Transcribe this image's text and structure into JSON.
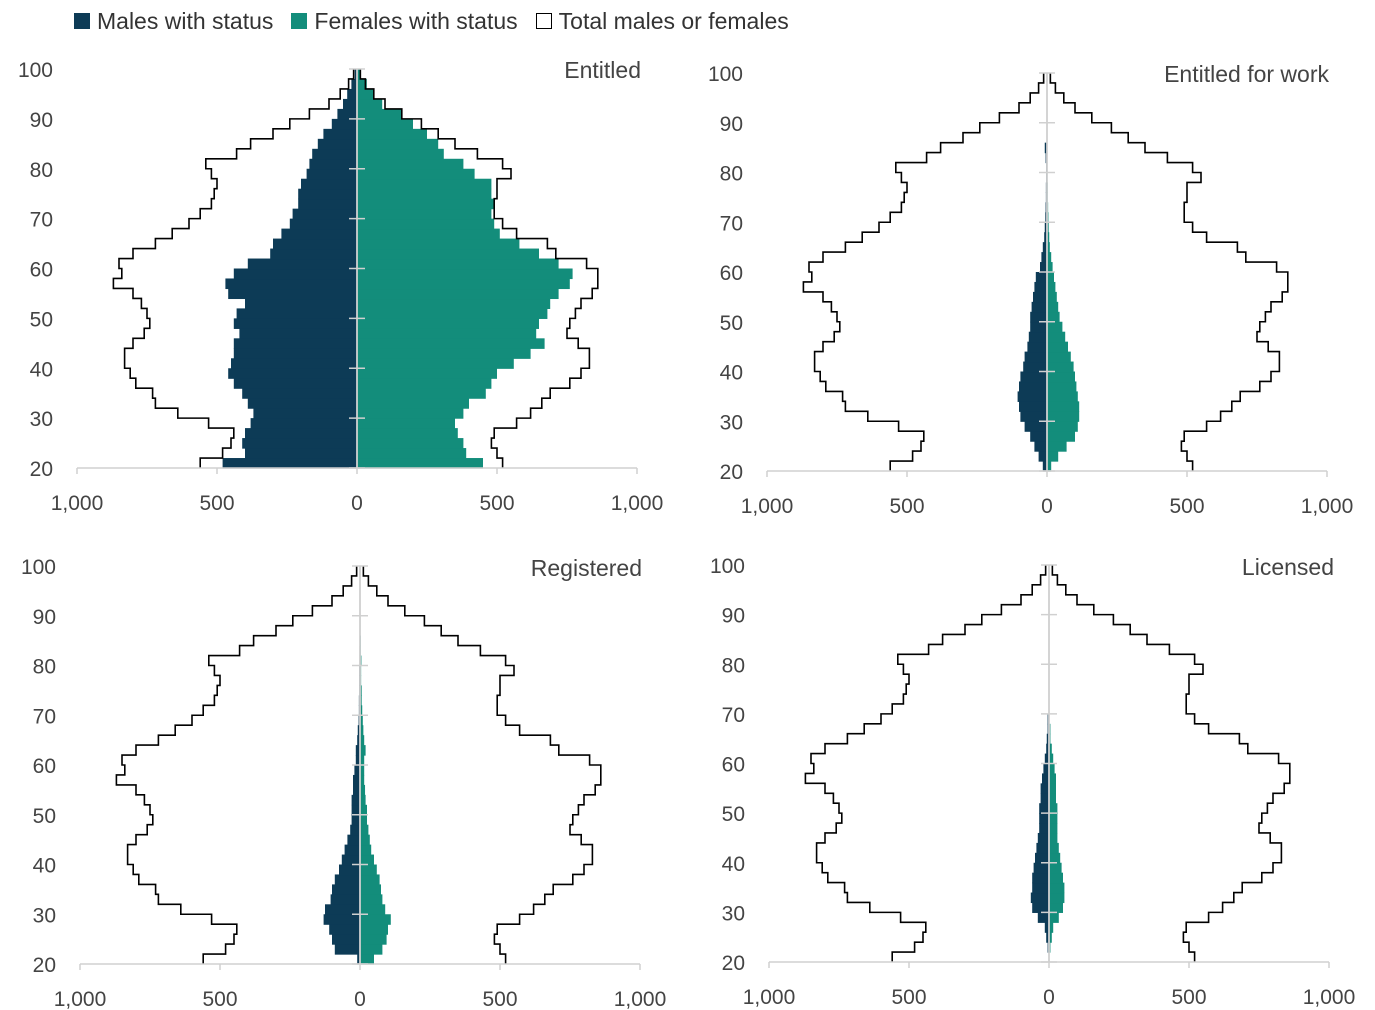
{
  "legend": {
    "males": "Males with status",
    "females": "Females with status",
    "total": "Total males or females"
  },
  "colors": {
    "males": "#0d3b56",
    "females": "#138d7b",
    "outline": "#000000",
    "axis": "#d0d0d0"
  },
  "chart_data": [
    {
      "type": "bar",
      "orientation": "population-pyramid",
      "title": "Entitled",
      "ages": [
        20,
        22,
        24,
        26,
        28,
        30,
        32,
        34,
        36,
        38,
        40,
        42,
        44,
        46,
        48,
        50,
        52,
        54,
        56,
        58,
        60,
        62,
        64,
        66,
        68,
        70,
        72,
        74,
        76,
        78,
        80,
        82,
        84,
        86,
        88,
        90,
        92,
        94,
        96,
        98
      ],
      "series": [
        {
          "name": "Males with status",
          "values": [
            480,
            400,
            410,
            400,
            380,
            370,
            390,
            410,
            440,
            460,
            450,
            440,
            440,
            420,
            440,
            430,
            400,
            460,
            470,
            440,
            390,
            310,
            300,
            270,
            240,
            230,
            210,
            210,
            200,
            180,
            170,
            160,
            140,
            120,
            90,
            70,
            50,
            35,
            20,
            8
          ]
        },
        {
          "name": "Females with status",
          "values": [
            450,
            390,
            380,
            360,
            350,
            380,
            400,
            460,
            480,
            500,
            560,
            620,
            670,
            640,
            650,
            680,
            690,
            720,
            760,
            770,
            720,
            650,
            580,
            510,
            490,
            480,
            490,
            480,
            480,
            420,
            380,
            310,
            290,
            250,
            200,
            160,
            90,
            60,
            35,
            12
          ]
        },
        {
          "name": "Total males or females",
          "values": [
            560,
            480,
            450,
            440,
            530,
            640,
            720,
            730,
            790,
            810,
            830,
            830,
            800,
            760,
            740,
            750,
            770,
            800,
            870,
            840,
            850,
            800,
            720,
            660,
            600,
            560,
            520,
            510,
            500,
            520,
            540,
            430,
            380,
            300,
            240,
            170,
            100,
            60,
            30,
            12
          ]
        },
        {
          "name": "Total males or females",
          "values": [
            520,
            500,
            480,
            490,
            570,
            620,
            660,
            690,
            760,
            800,
            830,
            830,
            790,
            750,
            760,
            780,
            800,
            840,
            860,
            860,
            820,
            710,
            680,
            570,
            520,
            490,
            490,
            500,
            500,
            550,
            520,
            430,
            350,
            290,
            230,
            160,
            100,
            60,
            30,
            12
          ]
        }
      ],
      "xlim": [
        -1000,
        1000
      ],
      "ylim": [
        20,
        100
      ],
      "x_ticks": [
        "1,000",
        "500",
        "0",
        "500",
        "1,000"
      ],
      "y_ticks": [
        "20",
        "30",
        "40",
        "50",
        "60",
        "70",
        "80",
        "90",
        "100"
      ]
    },
    {
      "type": "bar",
      "orientation": "population-pyramid",
      "title": "Entitled for work",
      "ages": [
        20,
        22,
        24,
        26,
        28,
        30,
        32,
        34,
        36,
        38,
        40,
        42,
        44,
        46,
        48,
        50,
        52,
        54,
        56,
        58,
        60,
        62,
        64,
        66,
        68,
        70,
        72,
        74,
        76,
        78,
        80,
        82,
        84,
        86,
        88,
        90,
        92,
        94,
        96,
        98
      ],
      "series": [
        {
          "name": "Males with status",
          "values": [
            15,
            30,
            45,
            60,
            80,
            95,
            100,
            105,
            100,
            95,
            85,
            80,
            70,
            65,
            60,
            60,
            55,
            50,
            45,
            40,
            25,
            20,
            15,
            10,
            8,
            6,
            5,
            4,
            4,
            3,
            3,
            5,
            8,
            0,
            0,
            0,
            0,
            0,
            0,
            0
          ]
        },
        {
          "name": "Females with status",
          "values": [
            15,
            40,
            70,
            100,
            110,
            115,
            115,
            110,
            105,
            100,
            95,
            85,
            75,
            65,
            55,
            45,
            40,
            35,
            30,
            25,
            20,
            15,
            10,
            8,
            6,
            5,
            4,
            3,
            3,
            2,
            2,
            0,
            0,
            0,
            0,
            0,
            0,
            0,
            0,
            0
          ]
        },
        {
          "name": "Total males or females",
          "values": [
            560,
            480,
            450,
            440,
            530,
            640,
            720,
            730,
            790,
            810,
            830,
            830,
            800,
            760,
            740,
            750,
            770,
            800,
            870,
            840,
            850,
            800,
            720,
            660,
            600,
            560,
            520,
            510,
            500,
            520,
            540,
            430,
            380,
            300,
            240,
            170,
            100,
            60,
            30,
            12
          ]
        },
        {
          "name": "Total males or females",
          "values": [
            520,
            500,
            480,
            490,
            570,
            620,
            660,
            690,
            760,
            800,
            830,
            830,
            790,
            750,
            760,
            780,
            800,
            840,
            860,
            860,
            820,
            710,
            680,
            570,
            520,
            490,
            490,
            500,
            500,
            550,
            520,
            430,
            350,
            290,
            230,
            160,
            100,
            60,
            30,
            12
          ]
        }
      ],
      "xlim": [
        -1000,
        1000
      ],
      "ylim": [
        20,
        100
      ],
      "x_ticks": [
        "1,000",
        "500",
        "0",
        "500",
        "1,000"
      ],
      "y_ticks": [
        "20",
        "30",
        "40",
        "50",
        "60",
        "70",
        "80",
        "90",
        "100"
      ]
    },
    {
      "type": "bar",
      "orientation": "population-pyramid",
      "title": "Registered",
      "ages": [
        20,
        22,
        24,
        26,
        28,
        30,
        32,
        34,
        36,
        38,
        40,
        42,
        44,
        46,
        48,
        50,
        52,
        54,
        56,
        58,
        60,
        62,
        64,
        66,
        68,
        70,
        72,
        74,
        76,
        78,
        80,
        82,
        84,
        86,
        88,
        90,
        92,
        94,
        96,
        98
      ],
      "series": [
        {
          "name": "Males with status",
          "values": [
            10,
            90,
            100,
            110,
            130,
            125,
            105,
            100,
            90,
            75,
            65,
            55,
            45,
            35,
            30,
            30,
            30,
            25,
            25,
            20,
            15,
            15,
            10,
            8,
            5,
            4,
            4,
            3,
            3,
            3,
            2,
            2,
            1,
            1,
            0,
            0,
            0,
            0,
            0,
            0
          ]
        },
        {
          "name": "Females with status",
          "values": [
            50,
            80,
            95,
            100,
            110,
            90,
            80,
            75,
            70,
            60,
            50,
            40,
            35,
            30,
            25,
            25,
            20,
            18,
            15,
            15,
            15,
            20,
            15,
            12,
            10,
            8,
            6,
            6,
            4,
            4,
            5,
            3,
            3,
            2,
            2,
            0,
            0,
            0,
            0,
            0
          ]
        },
        {
          "name": "Total males or females",
          "values": [
            560,
            480,
            450,
            440,
            530,
            640,
            720,
            730,
            790,
            810,
            830,
            830,
            800,
            760,
            740,
            750,
            770,
            800,
            870,
            840,
            850,
            800,
            720,
            660,
            600,
            560,
            520,
            510,
            500,
            520,
            540,
            430,
            380,
            300,
            240,
            170,
            100,
            60,
            30,
            12
          ]
        },
        {
          "name": "Total males or females",
          "values": [
            520,
            500,
            480,
            490,
            570,
            620,
            660,
            690,
            760,
            800,
            830,
            830,
            790,
            750,
            760,
            780,
            800,
            840,
            860,
            860,
            820,
            710,
            680,
            570,
            520,
            490,
            490,
            500,
            500,
            550,
            520,
            430,
            350,
            290,
            230,
            160,
            100,
            60,
            30,
            12
          ]
        }
      ],
      "xlim": [
        -1000,
        1000
      ],
      "ylim": [
        20,
        100
      ],
      "x_ticks": [
        "1,000",
        "500",
        "0",
        "500",
        "1,000"
      ],
      "y_ticks": [
        "20",
        "30",
        "40",
        "50",
        "60",
        "70",
        "80",
        "90",
        "100"
      ]
    },
    {
      "type": "bar",
      "orientation": "population-pyramid",
      "title": "Licensed",
      "ages": [
        20,
        22,
        24,
        26,
        28,
        30,
        32,
        34,
        36,
        38,
        40,
        42,
        44,
        46,
        48,
        50,
        52,
        54,
        56,
        58,
        60,
        62,
        64,
        66,
        68,
        70,
        72,
        74,
        76,
        78,
        80,
        82,
        84,
        86,
        88,
        90,
        92,
        94,
        96,
        98
      ],
      "series": [
        {
          "name": "Males with status",
          "values": [
            0,
            5,
            10,
            15,
            40,
            60,
            65,
            60,
            60,
            55,
            50,
            45,
            40,
            35,
            35,
            35,
            30,
            30,
            25,
            20,
            15,
            10,
            8,
            5,
            5,
            0,
            0,
            0,
            0,
            0,
            0,
            0,
            0,
            0,
            0,
            0,
            0,
            0,
            0,
            0
          ]
        },
        {
          "name": "Females with status",
          "values": [
            0,
            5,
            10,
            15,
            35,
            50,
            55,
            55,
            50,
            45,
            40,
            35,
            30,
            30,
            30,
            30,
            25,
            25,
            25,
            20,
            15,
            10,
            5,
            5,
            0,
            0,
            0,
            0,
            0,
            0,
            0,
            0,
            0,
            0,
            0,
            0,
            0,
            0,
            0,
            0
          ]
        },
        {
          "name": "Total males or females",
          "values": [
            560,
            480,
            450,
            440,
            530,
            640,
            720,
            730,
            790,
            810,
            830,
            830,
            800,
            760,
            740,
            750,
            770,
            800,
            870,
            840,
            850,
            800,
            720,
            660,
            600,
            560,
            520,
            510,
            500,
            520,
            540,
            430,
            380,
            300,
            240,
            170,
            100,
            60,
            30,
            12
          ]
        },
        {
          "name": "Total males or females",
          "values": [
            520,
            500,
            480,
            490,
            570,
            620,
            660,
            690,
            760,
            800,
            830,
            830,
            790,
            750,
            760,
            780,
            800,
            840,
            860,
            860,
            820,
            710,
            680,
            570,
            520,
            490,
            490,
            500,
            500,
            550,
            520,
            430,
            350,
            290,
            230,
            160,
            100,
            60,
            30,
            12
          ]
        }
      ],
      "xlim": [
        -1000,
        1000
      ],
      "ylim": [
        20,
        100
      ],
      "x_ticks": [
        "1,000",
        "500",
        "0",
        "500",
        "1,000"
      ],
      "y_ticks": [
        "20",
        "30",
        "40",
        "50",
        "60",
        "70",
        "80",
        "90",
        "100"
      ]
    }
  ]
}
